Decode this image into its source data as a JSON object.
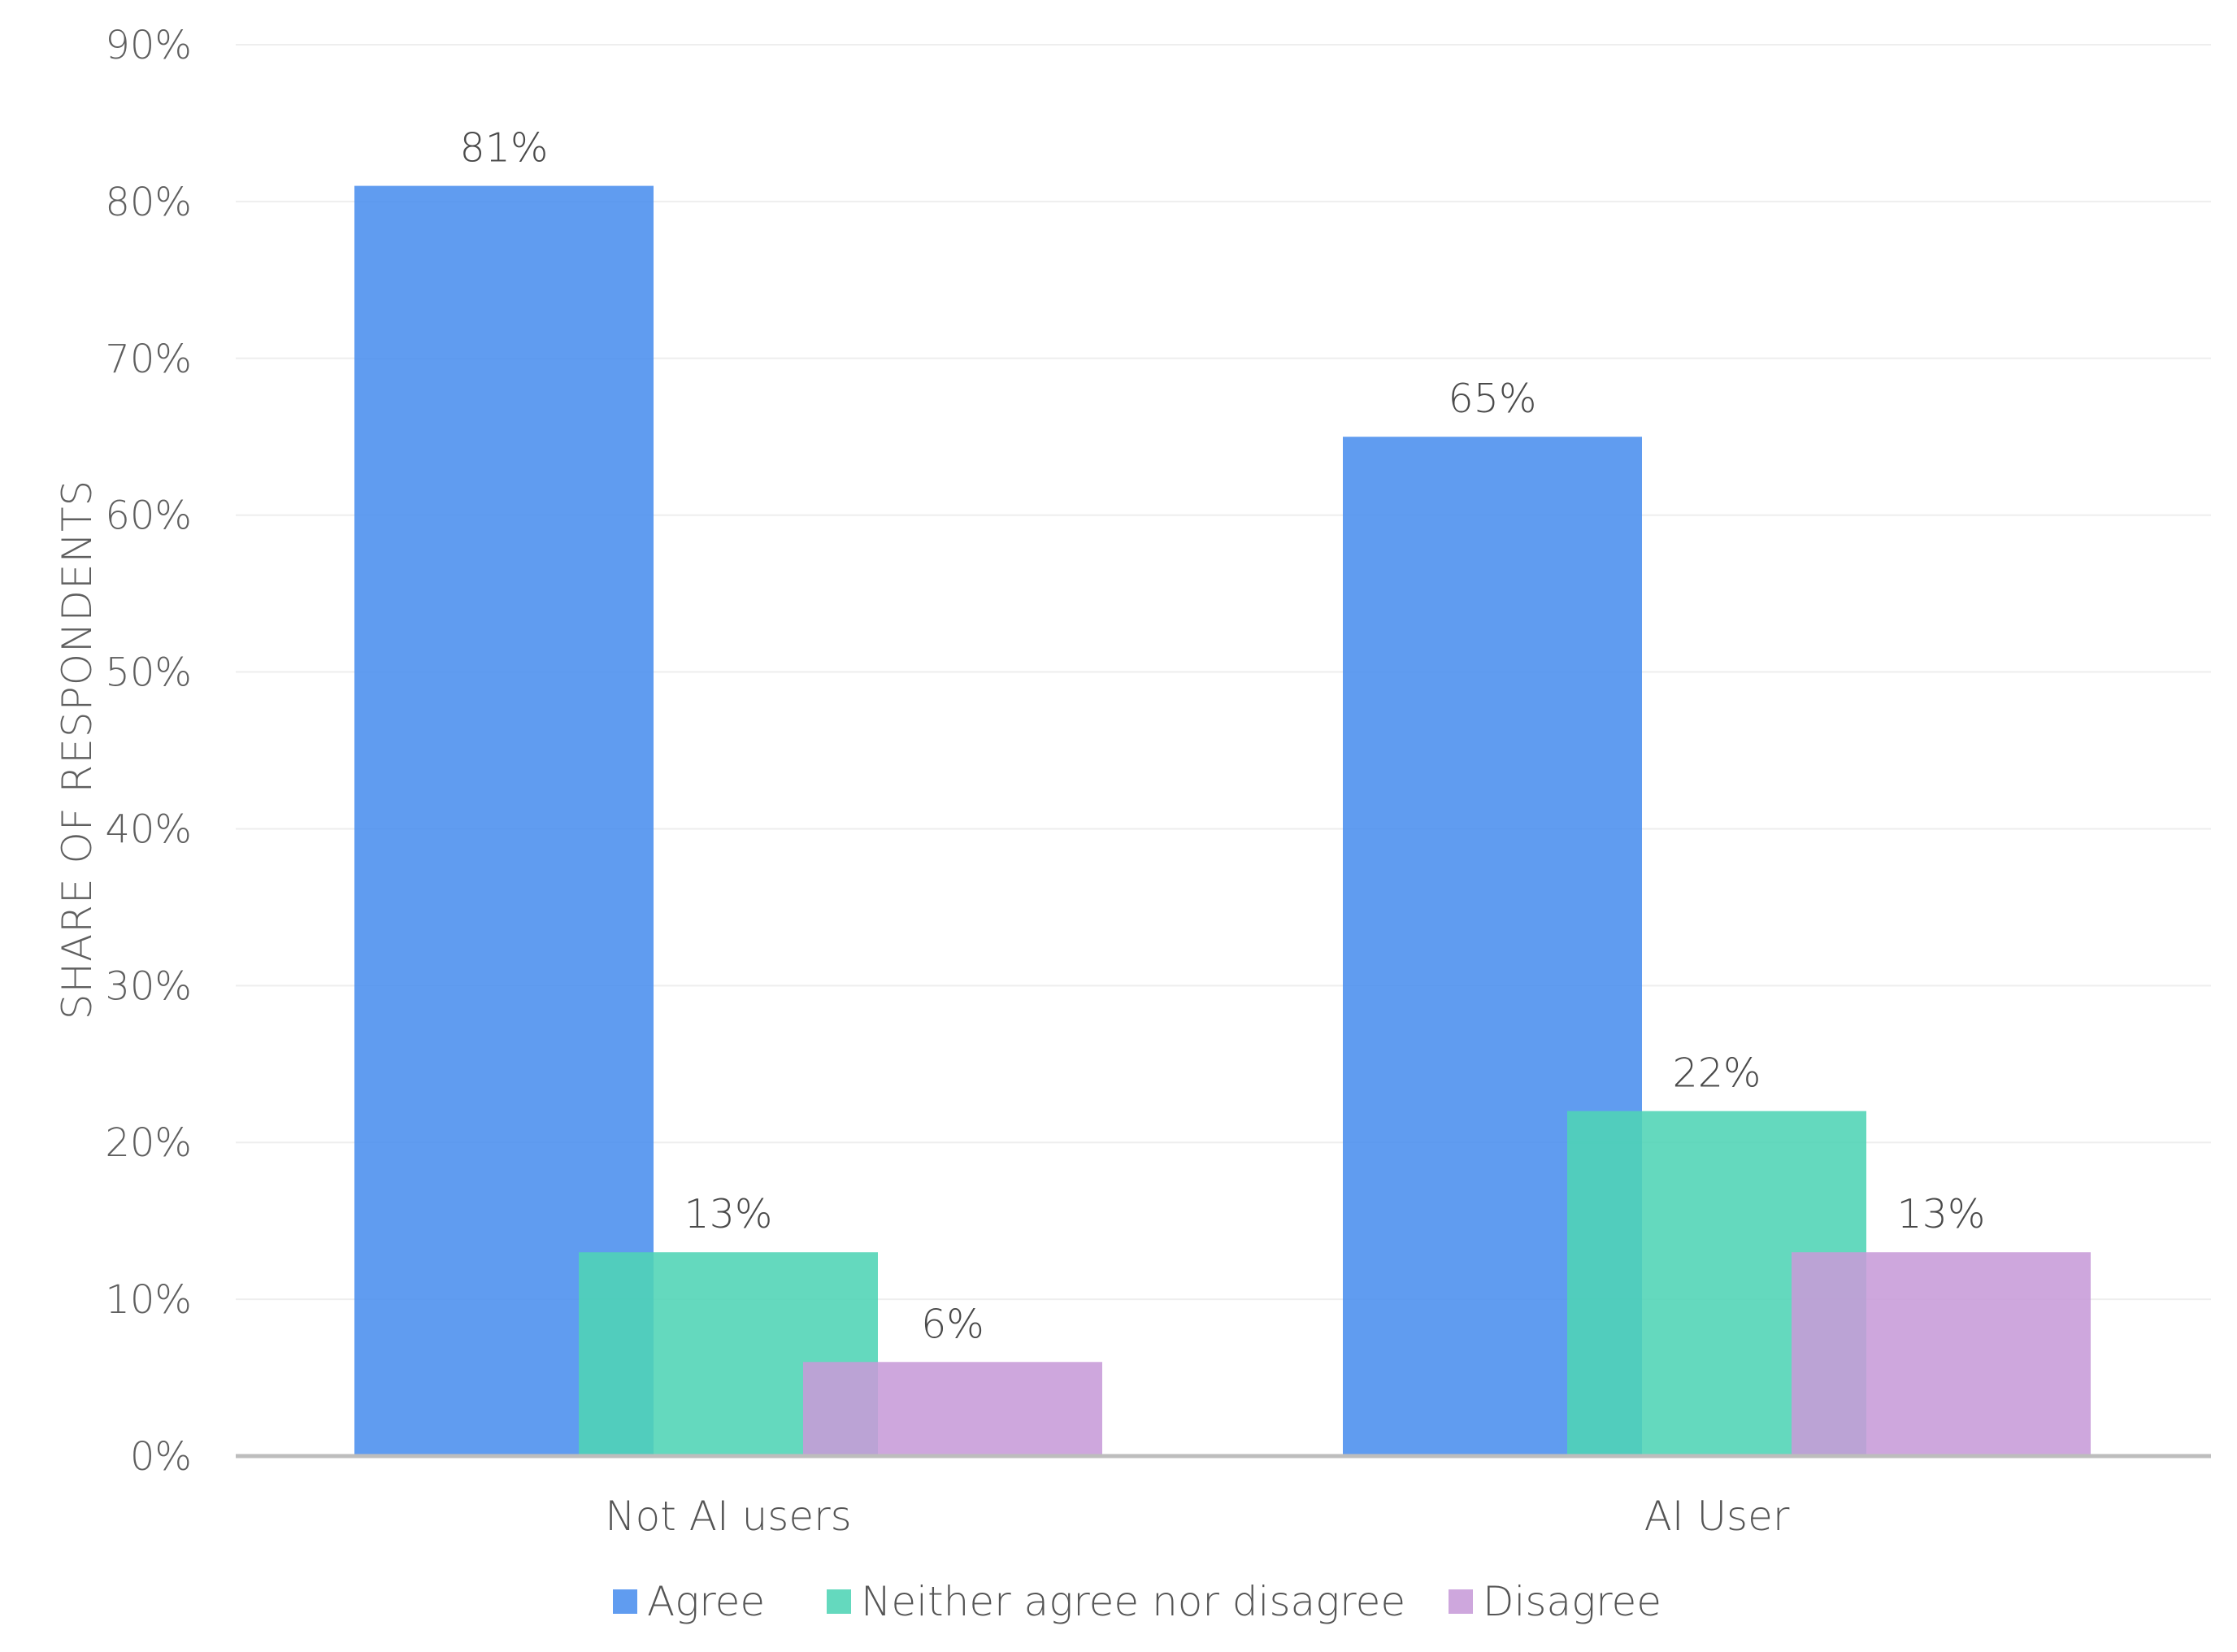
{
  "chart_data": {
    "type": "bar",
    "categories": [
      "Not AI users",
      "AI User"
    ],
    "series": [
      {
        "name": "Agree",
        "values": [
          81,
          65
        ],
        "color": "#4a8eee"
      },
      {
        "name": "Neither agree nor disagree",
        "values": [
          13,
          22
        ],
        "color": "#4fd4b5"
      },
      {
        "name": "Disagree",
        "values": [
          6,
          13
        ],
        "color": "#c79bd8"
      }
    ],
    "data_labels": [
      [
        "81%",
        "65%"
      ],
      [
        "13%",
        "22%"
      ],
      [
        "6%",
        "13%"
      ]
    ],
    "title": "",
    "xlabel": "",
    "ylabel": "SHARE OF RESPONDENTS",
    "ylim": [
      0,
      90
    ],
    "yticks": [
      0,
      10,
      20,
      30,
      40,
      50,
      60,
      70,
      80,
      90
    ],
    "ytick_labels": [
      "0%",
      "10%",
      "20%",
      "30%",
      "40%",
      "50%",
      "60%",
      "70%",
      "80%",
      "90%"
    ],
    "grid": true,
    "legend_position": "bottom-center",
    "colors": {
      "grid": "#eeeeee",
      "baseline": "#bdbdbd",
      "bar_opacity": 0.88
    }
  }
}
